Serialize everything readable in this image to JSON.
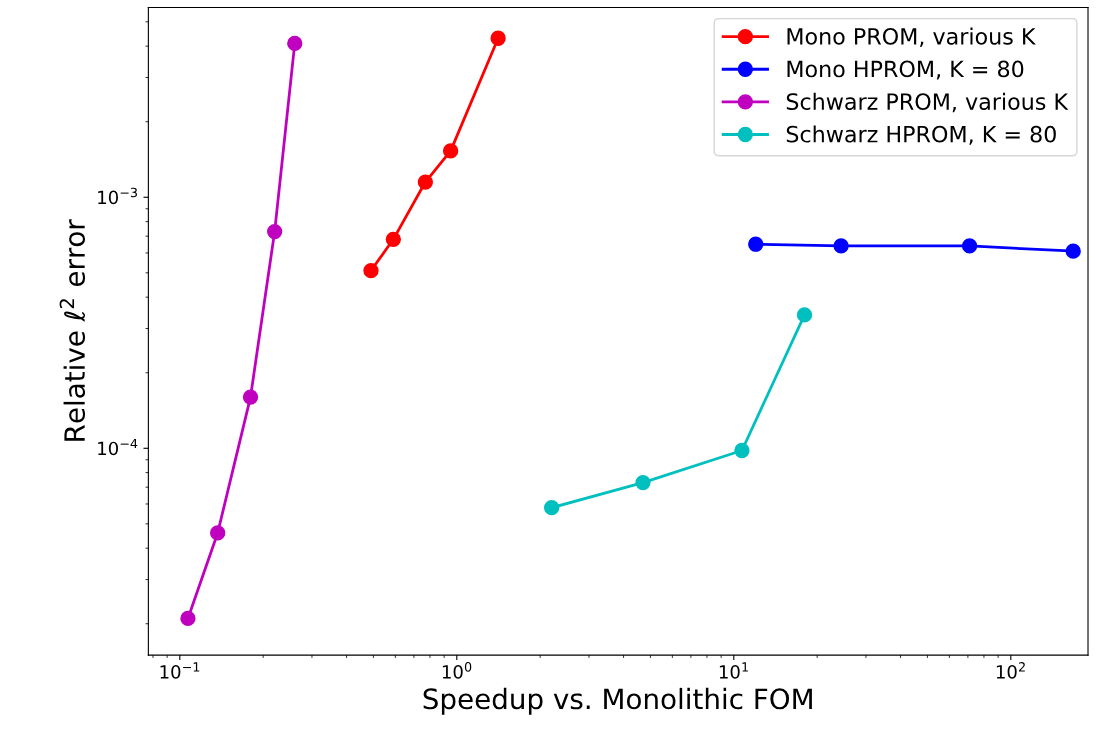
{
  "chart_data": {
    "type": "line",
    "xlabel": "Speedup vs. Monolithic FOM",
    "ylabel": "Relative ℓ$^{2}$ error",
    "log": "xy",
    "xlim": [
      0.077,
      190
    ],
    "ylim": [
      1.5e-05,
      0.0057
    ],
    "xticks": [
      {
        "value": 0.1,
        "label": "10$^{−1}$"
      },
      {
        "value": 1,
        "label": "10$^{0}$"
      },
      {
        "value": 10,
        "label": "10$^{1}$"
      },
      {
        "value": 100,
        "label": "10$^{2}$"
      }
    ],
    "yticks": [
      {
        "value": 0.0001,
        "label": "10$^{−4}$"
      },
      {
        "value": 0.001,
        "label": "10$^{−3}$"
      }
    ],
    "marker": "circle",
    "line_style": "solid",
    "grid": false,
    "legend": "top right",
    "series": [
      {
        "name": "Mono PROM, various K",
        "color": "#ff0000",
        "x": [
          0.49,
          0.59,
          0.77,
          0.95,
          1.41
        ],
        "values": [
          0.00051,
          0.00068,
          0.00115,
          0.00153,
          0.0043
        ]
      },
      {
        "name": "Mono HPROM, K = 80",
        "color": "#0000ff",
        "x": [
          12.0,
          24.4,
          71,
          168
        ],
        "values": [
          0.00065,
          0.00064,
          0.00064,
          0.00061
        ]
      },
      {
        "name": "Schwarz PROM, various K",
        "color": "#bf00bf",
        "x": [
          0.26,
          0.22,
          0.18,
          0.137,
          0.107
        ],
        "values": [
          0.0041,
          0.00073,
          0.00016,
          4.6e-05,
          2.1e-05
        ]
      },
      {
        "name": "Schwarz HPROM, K = 80",
        "color": "#00bfbf",
        "x": [
          2.2,
          4.7,
          10.7,
          18
        ],
        "values": [
          5.8e-05,
          7.3e-05,
          9.8e-05,
          0.00034
        ]
      }
    ]
  }
}
